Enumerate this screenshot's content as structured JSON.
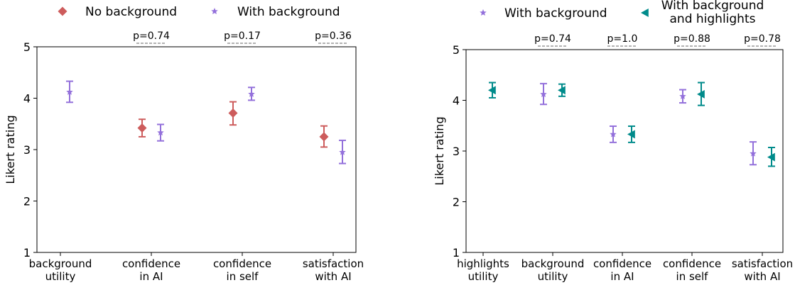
{
  "chart_data": [
    {
      "type": "scatter",
      "subtype": "errorbar",
      "ylabel": "Likert rating",
      "ylim": [
        1,
        5
      ],
      "yticks": [
        1,
        2,
        3,
        4,
        5
      ],
      "categories": [
        "background\nutility",
        "confidence\nin AI",
        "confidence\nin self",
        "satisfaction\nwith AI"
      ],
      "legend": {
        "placement": "top",
        "entries": [
          "No background",
          "With background"
        ]
      },
      "pvalues": [
        "",
        "p=0.74",
        "p=0.17",
        "p=0.36"
      ],
      "series": [
        {
          "name": "No background",
          "marker": "diamond",
          "color": "#cd5c5c",
          "values": [
            null,
            3.42,
            3.71,
            3.25
          ],
          "err_low": [
            null,
            3.25,
            3.48,
            3.05
          ],
          "err_high": [
            null,
            3.59,
            3.93,
            3.46
          ]
        },
        {
          "name": "With background",
          "marker": "star",
          "color": "#9370db",
          "values": [
            4.12,
            3.33,
            4.08,
            2.95
          ],
          "err_low": [
            3.92,
            3.17,
            3.96,
            2.73
          ],
          "err_high": [
            4.33,
            3.49,
            4.21,
            3.18
          ]
        }
      ]
    },
    {
      "type": "scatter",
      "subtype": "errorbar",
      "ylabel": "Likert rating",
      "ylim": [
        1,
        5
      ],
      "yticks": [
        1,
        2,
        3,
        4,
        5
      ],
      "categories": [
        "highlights\nutility",
        "background\nutility",
        "confidence\nin AI",
        "confidence\nin self",
        "satisfaction\nwith AI"
      ],
      "legend": {
        "placement": "top",
        "entries": [
          "With background",
          "With background\nand highlights"
        ]
      },
      "pvalues": [
        "",
        "p=0.74",
        "p=1.0",
        "p=0.88",
        "p=0.78"
      ],
      "series": [
        {
          "name": "With background",
          "marker": "star",
          "color": "#9370db",
          "values": [
            null,
            4.12,
            3.33,
            4.08,
            2.95
          ],
          "err_low": [
            null,
            3.92,
            3.17,
            3.95,
            2.73
          ],
          "err_high": [
            null,
            4.33,
            3.49,
            4.21,
            3.18
          ]
        },
        {
          "name": "With background\nand highlights",
          "marker": "triangle-left",
          "color": "#008b8b",
          "values": [
            4.2,
            4.2,
            3.33,
            4.12,
            2.88
          ],
          "err_low": [
            4.05,
            4.08,
            3.17,
            3.9,
            2.7
          ],
          "err_high": [
            4.35,
            4.32,
            3.49,
            4.35,
            3.07
          ]
        }
      ]
    }
  ]
}
